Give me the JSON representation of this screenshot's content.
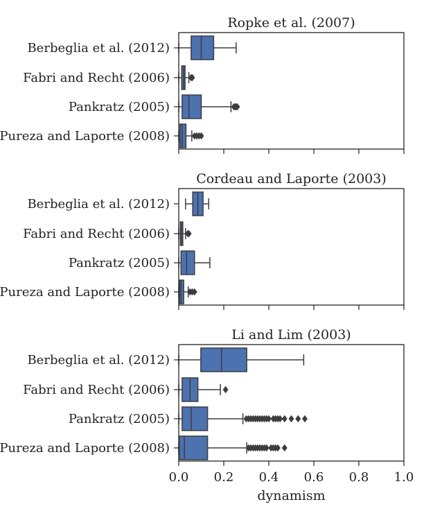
{
  "colors": {
    "box_fill": "#4c72b0",
    "line": "#3d3d3d",
    "frame": "#222222"
  },
  "chart_data": {
    "type": "box",
    "orientation": "horizontal",
    "shared_x_axis": true,
    "xlabel": "dynamism",
    "xlim": [
      0.0,
      1.0
    ],
    "xticks": [
      0.0,
      0.2,
      0.4,
      0.6,
      0.8,
      1.0
    ],
    "xtick_labels": [
      "0.0",
      "0.2",
      "0.4",
      "0.6",
      "0.8",
      "1.0"
    ],
    "categories": [
      "Berbeglia et al. (2012)",
      "Fabri and Recht (2006)",
      "Pankratz (2005)",
      "Pureza and Laporte (2008)"
    ],
    "panels": [
      {
        "title": "Ropke et al. (2007)",
        "boxes": [
          {
            "category": "Berbeglia et al. (2012)",
            "whisker_low": 0.0,
            "q1": 0.055,
            "median": 0.1,
            "q3": 0.155,
            "whisker_high": 0.255,
            "outliers": []
          },
          {
            "category": "Fabri and Recht (2006)",
            "whisker_low": 0.0,
            "q1": 0.013,
            "median": 0.022,
            "q3": 0.028,
            "whisker_high": 0.045,
            "outliers": [
              0.055,
              0.06
            ]
          },
          {
            "category": "Pankratz (2005)",
            "whisker_low": 0.0,
            "q1": 0.015,
            "median": 0.045,
            "q3": 0.1,
            "whisker_high": 0.232,
            "outliers": [
              0.245,
              0.25,
              0.255,
              0.26
            ]
          },
          {
            "category": "Pureza and Laporte (2008)",
            "whisker_low": 0.0,
            "q1": 0.005,
            "median": 0.015,
            "q3": 0.032,
            "whisker_high": 0.058,
            "outliers": [
              0.07,
              0.08,
              0.09,
              0.1
            ]
          }
        ]
      },
      {
        "title": "Cordeau and Laporte (2003)",
        "boxes": [
          {
            "category": "Berbeglia et al. (2012)",
            "whisker_low": 0.03,
            "q1": 0.062,
            "median": 0.085,
            "q3": 0.108,
            "whisker_high": 0.133,
            "outliers": []
          },
          {
            "category": "Fabri and Recht (2006)",
            "whisker_low": 0.0,
            "q1": 0.007,
            "median": 0.012,
            "q3": 0.018,
            "whisker_high": 0.03,
            "outliers": [
              0.04,
              0.045
            ]
          },
          {
            "category": "Pankratz (2005)",
            "whisker_low": 0.0,
            "q1": 0.01,
            "median": 0.035,
            "q3": 0.07,
            "whisker_high": 0.138,
            "outliers": []
          },
          {
            "category": "Pureza and Laporte (2008)",
            "whisker_low": 0.0,
            "q1": 0.003,
            "median": 0.01,
            "q3": 0.022,
            "whisker_high": 0.042,
            "outliers": [
              0.05,
              0.06,
              0.07
            ]
          }
        ]
      },
      {
        "title": "Li and Lim (2003)",
        "boxes": [
          {
            "category": "Berbeglia et al. (2012)",
            "whisker_low": 0.0,
            "q1": 0.098,
            "median": 0.19,
            "q3": 0.302,
            "whisker_high": 0.555,
            "outliers": []
          },
          {
            "category": "Fabri and Recht (2006)",
            "whisker_low": 0.0,
            "q1": 0.015,
            "median": 0.05,
            "q3": 0.085,
            "whisker_high": 0.185,
            "outliers": [
              0.208
            ]
          },
          {
            "category": "Pankratz (2005)",
            "whisker_low": 0.0,
            "q1": 0.015,
            "median": 0.055,
            "q3": 0.128,
            "whisker_high": 0.285,
            "outliers": [
              0.3,
              0.31,
              0.32,
              0.33,
              0.34,
              0.35,
              0.36,
              0.37,
              0.38,
              0.39,
              0.4,
              0.42,
              0.43,
              0.44,
              0.45,
              0.47,
              0.5,
              0.53,
              0.56
            ]
          },
          {
            "category": "Pureza and Laporte (2008)",
            "whisker_low": 0.0,
            "q1": 0.002,
            "median": 0.025,
            "q3": 0.128,
            "whisker_high": 0.302,
            "outliers": [
              0.31,
              0.32,
              0.33,
              0.34,
              0.35,
              0.36,
              0.37,
              0.38,
              0.39,
              0.41,
              0.42,
              0.43,
              0.44,
              0.47
            ]
          }
        ]
      }
    ]
  }
}
